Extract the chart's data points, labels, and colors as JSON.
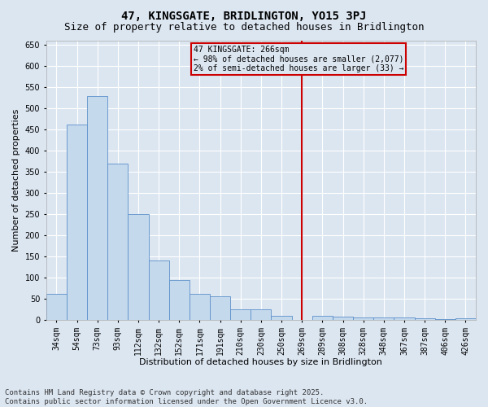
{
  "title": "47, KINGSGATE, BRIDLINGTON, YO15 3PJ",
  "subtitle": "Size of property relative to detached houses in Bridlington",
  "xlabel": "Distribution of detached houses by size in Bridlington",
  "ylabel": "Number of detached properties",
  "categories": [
    "34sqm",
    "54sqm",
    "73sqm",
    "93sqm",
    "112sqm",
    "132sqm",
    "152sqm",
    "171sqm",
    "191sqm",
    "210sqm",
    "230sqm",
    "250sqm",
    "269sqm",
    "289sqm",
    "308sqm",
    "328sqm",
    "348sqm",
    "367sqm",
    "387sqm",
    "406sqm",
    "426sqm"
  ],
  "values": [
    62,
    462,
    530,
    370,
    250,
    140,
    95,
    62,
    55,
    25,
    25,
    10,
    0,
    10,
    7,
    6,
    6,
    5,
    3,
    2,
    3
  ],
  "bar_color": "#c5d9ed",
  "bar_edge_color": "#5b8fc9",
  "bg_color": "#dce6f1",
  "grid_color": "#ffffff",
  "vline_color": "#cc0000",
  "annotation_title": "47 KINGSGATE: 266sqm",
  "annotation_line1": "← 98% of detached houses are smaller (2,077)",
  "annotation_line2": "2% of semi-detached houses are larger (33) →",
  "annotation_box_color": "#cc0000",
  "footer_line1": "Contains HM Land Registry data © Crown copyright and database right 2025.",
  "footer_line2": "Contains public sector information licensed under the Open Government Licence v3.0.",
  "ylim": [
    0,
    660
  ],
  "yticks": [
    0,
    50,
    100,
    150,
    200,
    250,
    300,
    350,
    400,
    450,
    500,
    550,
    600,
    650
  ],
  "title_fontsize": 10,
  "subtitle_fontsize": 9,
  "axis_label_fontsize": 8,
  "tick_fontsize": 7,
  "footer_fontsize": 6.5,
  "annot_fontsize": 7
}
